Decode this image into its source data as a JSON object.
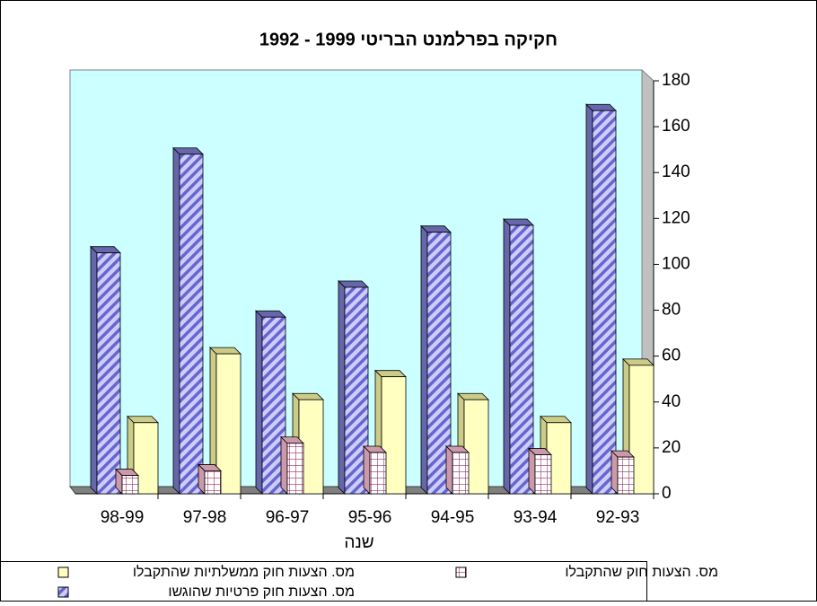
{
  "chart_data": {
    "type": "bar3d",
    "title": "חקיקה בפרלמנט הבריטי 1999 - 1992",
    "x_label": "שנה",
    "categories": [
      "98-99",
      "97-98",
      "96-97",
      "95-96",
      "94-95",
      "93-94",
      "92-93"
    ],
    "series": [
      {
        "name": "מס.  הצעות חוק פרטיות שהוגשו",
        "color": "#9999ff",
        "values": [
          105,
          148,
          77,
          90,
          114,
          117,
          167
        ]
      },
      {
        "name": "מס.  הצעות חוק שהתקבלו",
        "color": "#993366",
        "values": [
          8,
          10,
          22,
          18,
          18,
          17,
          16
        ]
      },
      {
        "name": "מס.  הצעות חוק ממשלתיות שהתקבלו",
        "color": "#ffffcc",
        "values": [
          31,
          61,
          41,
          51,
          41,
          31,
          56
        ]
      }
    ],
    "ylim": [
      0,
      180
    ],
    "yticks": [
      0,
      20,
      40,
      60,
      80,
      100,
      120,
      140,
      160,
      180
    ],
    "y_axis_side": "right",
    "wall_color": "#ccffff"
  }
}
